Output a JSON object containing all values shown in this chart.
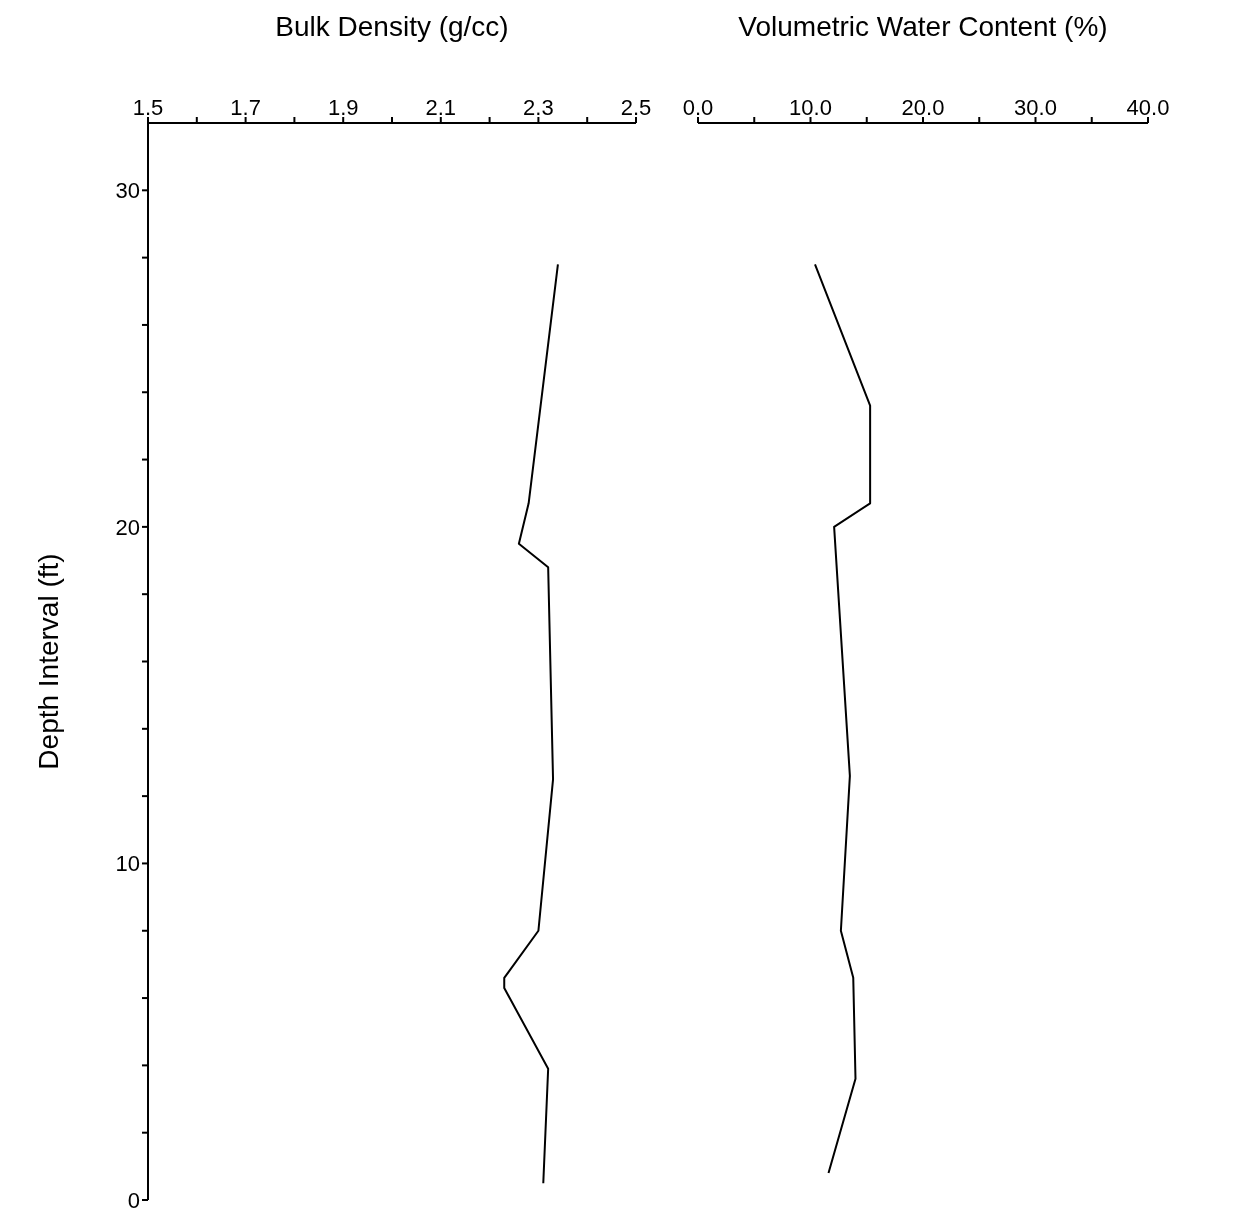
{
  "chart_data": [
    {
      "type": "line",
      "xlabel": "Bulk Density (g/cc)",
      "ylabel": "Depth Interval (ft)",
      "xlim": [
        1.5,
        2.5
      ],
      "xticks": [
        1.5,
        {
          "value": 1.6,
          "label": null
        },
        1.7,
        {
          "value": 1.8,
          "label": null
        },
        1.9,
        {
          "value": 2.0,
          "label": null
        },
        2.1,
        {
          "value": 2.2,
          "label": null
        },
        2.3,
        {
          "value": 2.4,
          "label": null
        },
        2.5
      ],
      "ylim": [
        0,
        32
      ],
      "yticks": [
        0,
        {
          "value": 2,
          "label": null
        },
        {
          "value": 4,
          "label": null
        },
        {
          "value": 6,
          "label": null
        },
        {
          "value": 8,
          "label": null
        },
        10,
        {
          "value": 12,
          "label": null
        },
        {
          "value": 14,
          "label": null
        },
        {
          "value": 16,
          "label": null
        },
        {
          "value": 18,
          "label": null
        },
        20,
        {
          "value": 22,
          "label": null
        },
        {
          "value": 24,
          "label": null
        },
        {
          "value": 26,
          "label": null
        },
        {
          "value": 28,
          "label": null
        },
        30
      ],
      "marker": "none",
      "series": [
        {
          "color": "#000000",
          "x": [
            2.34,
            2.28,
            2.26,
            2.32,
            2.33,
            2.3,
            2.23,
            2.23,
            2.32,
            2.31
          ],
          "values": [
            27.8,
            20.7,
            19.5,
            18.8,
            12.5,
            8.0,
            6.6,
            6.3,
            3.9,
            0.5
          ]
        }
      ]
    },
    {
      "type": "line",
      "xlabel": "Volumetric Water Content (%)",
      "xlim": [
        0,
        40
      ],
      "xticks": [
        {
          "value": 0,
          "label": "0.0"
        },
        {
          "value": 5,
          "label": null
        },
        {
          "value": 10,
          "label": "10.0"
        },
        {
          "value": 15,
          "label": null
        },
        {
          "value": 20,
          "label": "20.0"
        },
        {
          "value": 25,
          "label": null
        },
        {
          "value": 30,
          "label": "30.0"
        },
        {
          "value": 35,
          "label": null
        },
        {
          "value": 40,
          "label": "40.0"
        }
      ],
      "ylim": [
        0,
        32
      ],
      "tick_labels": "x",
      "marker": "none",
      "series": [
        {
          "color": "#000000",
          "x": [
            10.4,
            15.3,
            15.3,
            12.1,
            13.5,
            12.7,
            13.8,
            14.0,
            11.6
          ],
          "values": [
            27.8,
            23.6,
            20.7,
            20.0,
            12.6,
            8.0,
            6.6,
            3.6,
            0.8
          ]
        }
      ]
    }
  ]
}
